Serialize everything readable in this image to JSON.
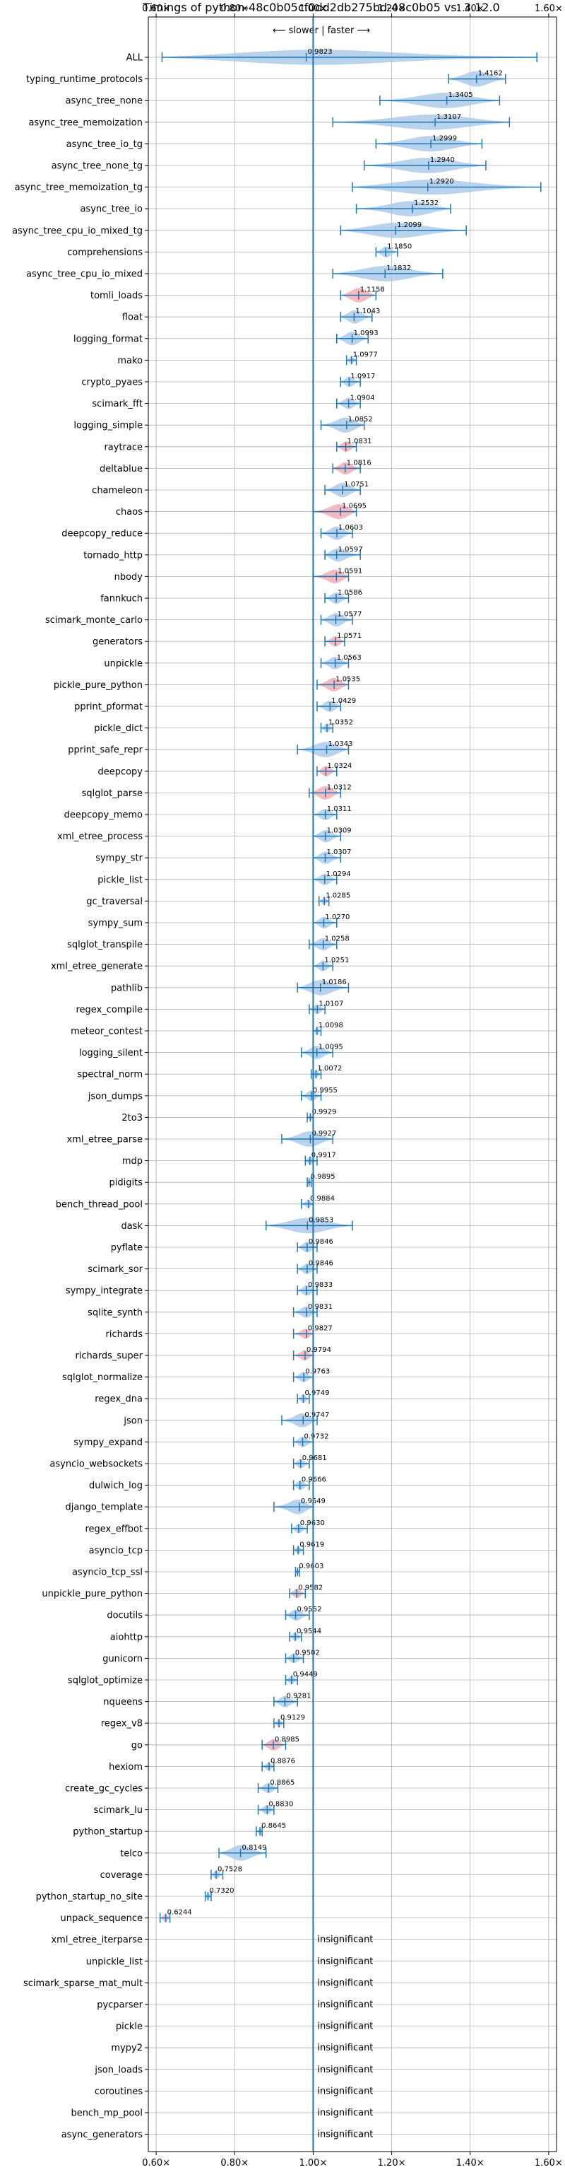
{
  "chart_data": {
    "type": "violin",
    "title": "Timings of python-48c0b05cf0dd2db275bd-48c0b05 vs. 3.12.0",
    "direction_label": "⟵ slower | faster ⟶",
    "xlim": [
      0.58,
      1.62
    ],
    "xticks": [
      0.6,
      0.8,
      1.0,
      1.2,
      1.4,
      1.6
    ],
    "xtick_labels": [
      "0.60×",
      "0.80×",
      "1.00×",
      "1.20×",
      "1.40×",
      "1.60×"
    ],
    "reference_line": 1.0,
    "grid": true,
    "colors": {
      "violin": "#a8c8e8",
      "significant_slower": "#f2a8b0",
      "line": "#1f77b4",
      "text": "#000000"
    },
    "insignificant_label": "insignificant",
    "benchmarks": [
      {
        "name": "ALL",
        "mean": 0.9823,
        "min": 0.615,
        "max": 1.57,
        "label": "0.9823"
      },
      {
        "name": "typing_runtime_protocols",
        "mean": 1.4162,
        "min": 1.345,
        "max": 1.49,
        "label": "1.4162"
      },
      {
        "name": "async_tree_none",
        "mean": 1.3405,
        "min": 1.17,
        "max": 1.475,
        "label": "1.3405"
      },
      {
        "name": "async_tree_memoization",
        "mean": 1.3107,
        "min": 1.05,
        "max": 1.5,
        "label": "1.3107"
      },
      {
        "name": "async_tree_io_tg",
        "mean": 1.2999,
        "min": 1.16,
        "max": 1.43,
        "label": "1.2999"
      },
      {
        "name": "async_tree_none_tg",
        "mean": 1.294,
        "min": 1.13,
        "max": 1.44,
        "label": "1.2940"
      },
      {
        "name": "async_tree_memoization_tg",
        "mean": 1.292,
        "min": 1.1,
        "max": 1.58,
        "label": "1.2920"
      },
      {
        "name": "async_tree_io",
        "mean": 1.2532,
        "min": 1.11,
        "max": 1.35,
        "label": "1.2532"
      },
      {
        "name": "async_tree_cpu_io_mixed_tg",
        "mean": 1.2099,
        "min": 1.07,
        "max": 1.39,
        "label": "1.2099"
      },
      {
        "name": "comprehensions",
        "mean": 1.185,
        "min": 1.16,
        "max": 1.215,
        "label": "1.1850"
      },
      {
        "name": "async_tree_cpu_io_mixed",
        "mean": 1.1832,
        "min": 1.05,
        "max": 1.33,
        "label": "1.1832"
      },
      {
        "name": "tomli_loads",
        "mean": 1.1158,
        "min": 1.07,
        "max": 1.16,
        "label": "1.1158",
        "slower": true
      },
      {
        "name": "float",
        "mean": 1.1043,
        "min": 1.07,
        "max": 1.15,
        "label": "1.1043"
      },
      {
        "name": "logging_format",
        "mean": 1.0993,
        "min": 1.06,
        "max": 1.14,
        "label": "1.0993"
      },
      {
        "name": "mako",
        "mean": 1.0977,
        "min": 1.085,
        "max": 1.11,
        "label": "1.0977"
      },
      {
        "name": "crypto_pyaes",
        "mean": 1.0917,
        "min": 1.07,
        "max": 1.12,
        "label": "1.0917"
      },
      {
        "name": "scimark_fft",
        "mean": 1.0904,
        "min": 1.06,
        "max": 1.12,
        "label": "1.0904"
      },
      {
        "name": "logging_simple",
        "mean": 1.0852,
        "min": 1.02,
        "max": 1.13,
        "label": "1.0852"
      },
      {
        "name": "raytrace",
        "mean": 1.0831,
        "min": 1.06,
        "max": 1.11,
        "label": "1.0831",
        "slower": true
      },
      {
        "name": "deltablue",
        "mean": 1.0816,
        "min": 1.05,
        "max": 1.12,
        "label": "1.0816",
        "slower": true
      },
      {
        "name": "chameleon",
        "mean": 1.0751,
        "min": 1.03,
        "max": 1.12,
        "label": "1.0751"
      },
      {
        "name": "chaos",
        "mean": 1.0695,
        "min": 1.0,
        "max": 1.11,
        "label": "1.0695",
        "slower": true
      },
      {
        "name": "deepcopy_reduce",
        "mean": 1.0603,
        "min": 1.02,
        "max": 1.1,
        "label": "1.0603"
      },
      {
        "name": "tornado_http",
        "mean": 1.0597,
        "min": 1.03,
        "max": 1.12,
        "label": "1.0597"
      },
      {
        "name": "nbody",
        "mean": 1.0591,
        "min": 1.0,
        "max": 1.09,
        "label": "1.0591",
        "slower": true
      },
      {
        "name": "fannkuch",
        "mean": 1.0586,
        "min": 1.03,
        "max": 1.09,
        "label": "1.0586"
      },
      {
        "name": "scimark_monte_carlo",
        "mean": 1.0577,
        "min": 1.02,
        "max": 1.1,
        "label": "1.0577"
      },
      {
        "name": "generators",
        "mean": 1.0571,
        "min": 1.03,
        "max": 1.08,
        "label": "1.0571",
        "slower": true
      },
      {
        "name": "unpickle",
        "mean": 1.0563,
        "min": 1.02,
        "max": 1.09,
        "label": "1.0563"
      },
      {
        "name": "pickle_pure_python",
        "mean": 1.0535,
        "min": 1.01,
        "max": 1.09,
        "label": "1.0535",
        "slower": true
      },
      {
        "name": "pprint_pformat",
        "mean": 1.0429,
        "min": 1.01,
        "max": 1.07,
        "label": "1.0429"
      },
      {
        "name": "pickle_dict",
        "mean": 1.0352,
        "min": 1.02,
        "max": 1.05,
        "label": "1.0352"
      },
      {
        "name": "pprint_safe_repr",
        "mean": 1.0343,
        "min": 0.96,
        "max": 1.09,
        "label": "1.0343"
      },
      {
        "name": "deepcopy",
        "mean": 1.0324,
        "min": 1.01,
        "max": 1.06,
        "label": "1.0324",
        "slower": true
      },
      {
        "name": "sqlglot_parse",
        "mean": 1.0312,
        "min": 0.99,
        "max": 1.07,
        "label": "1.0312",
        "slower": true
      },
      {
        "name": "deepcopy_memo",
        "mean": 1.0311,
        "min": 1.0,
        "max": 1.06,
        "label": "1.0311"
      },
      {
        "name": "xml_etree_process",
        "mean": 1.0309,
        "min": 1.0,
        "max": 1.07,
        "label": "1.0309"
      },
      {
        "name": "sympy_str",
        "mean": 1.0307,
        "min": 1.0,
        "max": 1.07,
        "label": "1.0307"
      },
      {
        "name": "pickle_list",
        "mean": 1.0294,
        "min": 1.0,
        "max": 1.06,
        "label": "1.0294"
      },
      {
        "name": "gc_traversal",
        "mean": 1.0285,
        "min": 1.015,
        "max": 1.04,
        "label": "1.0285"
      },
      {
        "name": "sympy_sum",
        "mean": 1.027,
        "min": 1.0,
        "max": 1.06,
        "label": "1.0270"
      },
      {
        "name": "sqlglot_transpile",
        "mean": 1.0258,
        "min": 0.99,
        "max": 1.06,
        "label": "1.0258"
      },
      {
        "name": "xml_etree_generate",
        "mean": 1.0251,
        "min": 1.0,
        "max": 1.05,
        "label": "1.0251"
      },
      {
        "name": "pathlib",
        "mean": 1.0186,
        "min": 0.96,
        "max": 1.09,
        "label": "1.0186"
      },
      {
        "name": "regex_compile",
        "mean": 1.0107,
        "min": 0.99,
        "max": 1.03,
        "label": "1.0107"
      },
      {
        "name": "meteor_contest",
        "mean": 1.0098,
        "min": 1.0,
        "max": 1.02,
        "label": "1.0098"
      },
      {
        "name": "logging_silent",
        "mean": 1.0095,
        "min": 0.97,
        "max": 1.05,
        "label": "1.0095"
      },
      {
        "name": "spectral_norm",
        "mean": 1.0072,
        "min": 0.995,
        "max": 1.02,
        "label": "1.0072"
      },
      {
        "name": "json_dumps",
        "mean": 0.9955,
        "min": 0.97,
        "max": 1.02,
        "label": "0.9955"
      },
      {
        "name": "2to3",
        "mean": 0.9929,
        "min": 0.985,
        "max": 1.0,
        "label": "0.9929"
      },
      {
        "name": "xml_etree_parse",
        "mean": 0.9927,
        "min": 0.92,
        "max": 1.05,
        "label": "0.9927"
      },
      {
        "name": "mdp",
        "mean": 0.9917,
        "min": 0.98,
        "max": 1.01,
        "label": "0.9917"
      },
      {
        "name": "pidigits",
        "mean": 0.9895,
        "min": 0.985,
        "max": 0.995,
        "label": "0.9895"
      },
      {
        "name": "bench_thread_pool",
        "mean": 0.9884,
        "min": 0.97,
        "max": 1.0,
        "label": "0.9884"
      },
      {
        "name": "dask",
        "mean": 0.9853,
        "min": 0.88,
        "max": 1.1,
        "label": "0.9853"
      },
      {
        "name": "pyflate",
        "mean": 0.9846,
        "min": 0.96,
        "max": 1.01,
        "label": "0.9846"
      },
      {
        "name": "scimark_sor",
        "mean": 0.9846,
        "min": 0.96,
        "max": 1.01,
        "label": "0.9846"
      },
      {
        "name": "sympy_integrate",
        "mean": 0.9833,
        "min": 0.96,
        "max": 1.01,
        "label": "0.9833"
      },
      {
        "name": "sqlite_synth",
        "mean": 0.9831,
        "min": 0.95,
        "max": 1.01,
        "label": "0.9831"
      },
      {
        "name": "richards",
        "mean": 0.9827,
        "min": 0.95,
        "max": 1.0,
        "label": "0.9827",
        "slower": true
      },
      {
        "name": "richards_super",
        "mean": 0.9794,
        "min": 0.95,
        "max": 1.0,
        "label": "0.9794",
        "slower": true
      },
      {
        "name": "sqlglot_normalize",
        "mean": 0.9763,
        "min": 0.95,
        "max": 1.0,
        "label": "0.9763"
      },
      {
        "name": "regex_dna",
        "mean": 0.9749,
        "min": 0.96,
        "max": 0.99,
        "label": "0.9749"
      },
      {
        "name": "json",
        "mean": 0.9747,
        "min": 0.92,
        "max": 1.01,
        "label": "0.9747"
      },
      {
        "name": "sympy_expand",
        "mean": 0.9732,
        "min": 0.95,
        "max": 1.0,
        "label": "0.9732"
      },
      {
        "name": "asyncio_websockets",
        "mean": 0.9681,
        "min": 0.95,
        "max": 0.99,
        "label": "0.9681"
      },
      {
        "name": "dulwich_log",
        "mean": 0.9666,
        "min": 0.95,
        "max": 0.99,
        "label": "0.9666"
      },
      {
        "name": "django_template",
        "mean": 0.9649,
        "min": 0.9,
        "max": 1.0,
        "label": "0.9649"
      },
      {
        "name": "regex_effbot",
        "mean": 0.963,
        "min": 0.945,
        "max": 0.985,
        "label": "0.9630"
      },
      {
        "name": "asyncio_tcp",
        "mean": 0.9619,
        "min": 0.95,
        "max": 0.975,
        "label": "0.9619"
      },
      {
        "name": "asyncio_tcp_ssl",
        "mean": 0.9603,
        "min": 0.955,
        "max": 0.965,
        "label": "0.9603"
      },
      {
        "name": "unpickle_pure_python",
        "mean": 0.9582,
        "min": 0.94,
        "max": 0.98,
        "label": "0.9582",
        "slower": true
      },
      {
        "name": "docutils",
        "mean": 0.9552,
        "min": 0.93,
        "max": 0.99,
        "label": "0.9552"
      },
      {
        "name": "aiohttp",
        "mean": 0.9544,
        "min": 0.94,
        "max": 0.97,
        "label": "0.9544"
      },
      {
        "name": "gunicorn",
        "mean": 0.9502,
        "min": 0.93,
        "max": 0.975,
        "label": "0.9502"
      },
      {
        "name": "sqlglot_optimize",
        "mean": 0.9449,
        "min": 0.93,
        "max": 0.96,
        "label": "0.9449"
      },
      {
        "name": "nqueens",
        "mean": 0.9281,
        "min": 0.9,
        "max": 0.96,
        "label": "0.9281"
      },
      {
        "name": "regex_v8",
        "mean": 0.9129,
        "min": 0.9,
        "max": 0.925,
        "label": "0.9129"
      },
      {
        "name": "go",
        "mean": 0.8985,
        "min": 0.87,
        "max": 0.93,
        "label": "0.8985",
        "slower": true
      },
      {
        "name": "hexiom",
        "mean": 0.8876,
        "min": 0.87,
        "max": 0.9,
        "label": "0.8876"
      },
      {
        "name": "create_gc_cycles",
        "mean": 0.8865,
        "min": 0.86,
        "max": 0.91,
        "label": "0.8865"
      },
      {
        "name": "scimark_lu",
        "mean": 0.883,
        "min": 0.86,
        "max": 0.9,
        "label": "0.8830"
      },
      {
        "name": "python_startup",
        "mean": 0.8645,
        "min": 0.855,
        "max": 0.87,
        "label": "0.8645"
      },
      {
        "name": "telco",
        "mean": 0.8149,
        "min": 0.76,
        "max": 0.88,
        "label": "0.8149"
      },
      {
        "name": "coverage",
        "mean": 0.7528,
        "min": 0.74,
        "max": 0.77,
        "label": "0.7528"
      },
      {
        "name": "python_startup_no_site",
        "mean": 0.732,
        "min": 0.725,
        "max": 0.74,
        "label": "0.7320"
      },
      {
        "name": "unpack_sequence",
        "mean": 0.6244,
        "min": 0.61,
        "max": 0.635,
        "label": "0.6244",
        "slower": true
      },
      {
        "name": "xml_etree_iterparse",
        "insignificant": true
      },
      {
        "name": "unpickle_list",
        "insignificant": true
      },
      {
        "name": "scimark_sparse_mat_mult",
        "insignificant": true
      },
      {
        "name": "pycparser",
        "insignificant": true
      },
      {
        "name": "pickle",
        "insignificant": true
      },
      {
        "name": "mypy2",
        "insignificant": true
      },
      {
        "name": "json_loads",
        "insignificant": true
      },
      {
        "name": "coroutines",
        "insignificant": true
      },
      {
        "name": "bench_mp_pool",
        "insignificant": true
      },
      {
        "name": "async_generators",
        "insignificant": true
      }
    ]
  }
}
